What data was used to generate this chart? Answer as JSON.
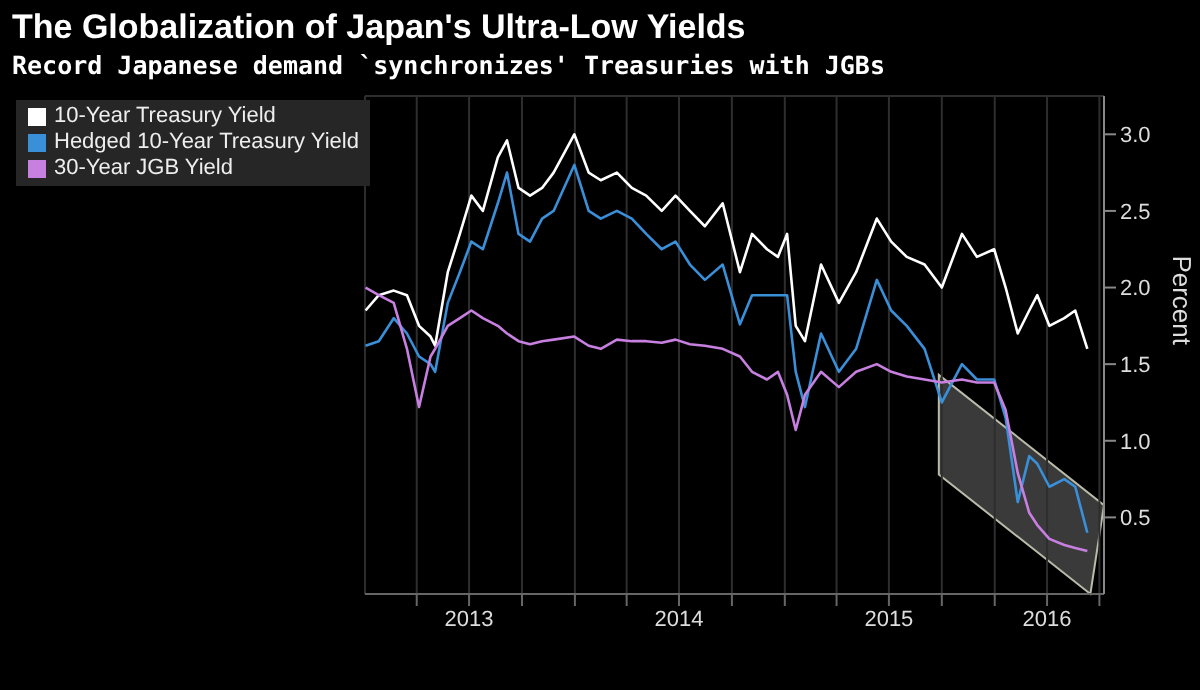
{
  "chart_data": {
    "type": "line",
    "title": "The Globalization of Japan's Ultra-Low Yields",
    "subtitle": "Record Japanese demand `synchronizes' Treasuries with JGBs",
    "ylabel": "Percent",
    "x": [
      "2013-01-02",
      "2013-01-25",
      "2013-02-20",
      "2013-03-15",
      "2013-04-05",
      "2013-04-25",
      "2013-05-03",
      "2013-05-25",
      "2013-06-15",
      "2013-07-05",
      "2013-07-25",
      "2013-08-20",
      "2013-09-05",
      "2013-09-25",
      "2013-10-15",
      "2013-11-05",
      "2013-11-25",
      "2013-12-31",
      "2014-01-25",
      "2014-02-15",
      "2014-03-15",
      "2014-04-10",
      "2014-05-05",
      "2014-06-01",
      "2014-06-25",
      "2014-07-20",
      "2014-08-15",
      "2014-09-15",
      "2014-10-15",
      "2014-11-05",
      "2014-12-01",
      "2014-12-20",
      "2015-01-05",
      "2015-01-20",
      "2015-02-05",
      "2015-03-05",
      "2015-04-05",
      "2015-05-05",
      "2015-06-10",
      "2015-07-05",
      "2015-08-01",
      "2015-09-01",
      "2015-10-01",
      "2015-11-05",
      "2015-12-01",
      "2015-12-31",
      "2016-01-20",
      "2016-02-10",
      "2016-03-01",
      "2016-03-15",
      "2016-04-05",
      "2016-05-01",
      "2016-05-20",
      "2016-06-10"
    ],
    "series": [
      {
        "name": "10-Year Treasury Yield",
        "color": "#ffffff",
        "values": [
          1.85,
          1.95,
          1.98,
          1.95,
          1.75,
          1.68,
          1.62,
          2.1,
          2.35,
          2.6,
          2.5,
          2.85,
          2.96,
          2.65,
          2.6,
          2.65,
          2.75,
          3.0,
          2.75,
          2.7,
          2.75,
          2.65,
          2.6,
          2.5,
          2.6,
          2.5,
          2.4,
          2.55,
          2.1,
          2.35,
          2.25,
          2.2,
          2.35,
          1.75,
          1.65,
          2.15,
          1.9,
          2.1,
          2.45,
          2.3,
          2.2,
          2.15,
          2.0,
          2.35,
          2.2,
          2.25,
          2.0,
          1.7,
          1.85,
          1.95,
          1.75,
          1.8,
          1.85,
          1.6
        ]
      },
      {
        "name": "Hedged 10-Year Treasury Yield",
        "color": "#3a8fd9",
        "values": [
          1.62,
          1.65,
          1.8,
          1.7,
          1.55,
          1.5,
          1.45,
          1.9,
          2.1,
          2.3,
          2.25,
          2.55,
          2.75,
          2.35,
          2.3,
          2.45,
          2.5,
          2.8,
          2.5,
          2.45,
          2.5,
          2.45,
          2.35,
          2.25,
          2.3,
          2.15,
          2.05,
          2.15,
          1.76,
          1.95,
          1.95,
          1.95,
          1.95,
          1.45,
          1.22,
          1.7,
          1.45,
          1.6,
          2.05,
          1.85,
          1.75,
          1.6,
          1.25,
          1.5,
          1.4,
          1.4,
          1.15,
          0.6,
          0.9,
          0.85,
          0.7,
          0.75,
          0.7,
          0.4
        ]
      },
      {
        "name": "30-Year JGB Yield",
        "color": "#c77fe0",
        "values": [
          2.0,
          1.95,
          1.9,
          1.6,
          1.22,
          1.55,
          1.6,
          1.75,
          1.8,
          1.85,
          1.8,
          1.75,
          1.7,
          1.65,
          1.63,
          1.65,
          1.66,
          1.68,
          1.62,
          1.6,
          1.66,
          1.65,
          1.65,
          1.64,
          1.66,
          1.63,
          1.62,
          1.6,
          1.55,
          1.45,
          1.4,
          1.45,
          1.3,
          1.07,
          1.3,
          1.45,
          1.35,
          1.45,
          1.5,
          1.45,
          1.42,
          1.4,
          1.38,
          1.4,
          1.38,
          1.38,
          1.2,
          0.79,
          0.53,
          0.45,
          0.36,
          0.32,
          0.3,
          0.28
        ]
      }
    ],
    "xlim": [
      "2013-01-01",
      "2016-07-09"
    ],
    "xticks": [
      {
        "value": "2013-04-01",
        "label": null
      },
      {
        "value": "2013-07-01",
        "label": "2013"
      },
      {
        "value": "2013-10-01",
        "label": null
      },
      {
        "value": "2014-01-01",
        "label": null
      },
      {
        "value": "2014-04-01",
        "label": null
      },
      {
        "value": "2014-07-01",
        "label": "2014"
      },
      {
        "value": "2014-10-01",
        "label": null
      },
      {
        "value": "2015-01-01",
        "label": null
      },
      {
        "value": "2015-04-01",
        "label": null
      },
      {
        "value": "2015-07-01",
        "label": "2015"
      },
      {
        "value": "2015-10-01",
        "label": null
      },
      {
        "value": "2016-01-01",
        "label": null
      },
      {
        "value": "2016-04-01",
        "label": "2016"
      },
      {
        "value": "2016-07-01",
        "label": null
      }
    ],
    "ylim": [
      0,
      3.25
    ],
    "yticks": [
      0.5,
      {
        "value": 1,
        "label": "1.0"
      },
      1.5,
      {
        "value": 2,
        "label": "2.0"
      },
      2.5,
      {
        "value": 3,
        "label": "3.0"
      }
    ],
    "grid": true,
    "legend": "top left",
    "marker": "none",
    "line_style": "solid"
  }
}
